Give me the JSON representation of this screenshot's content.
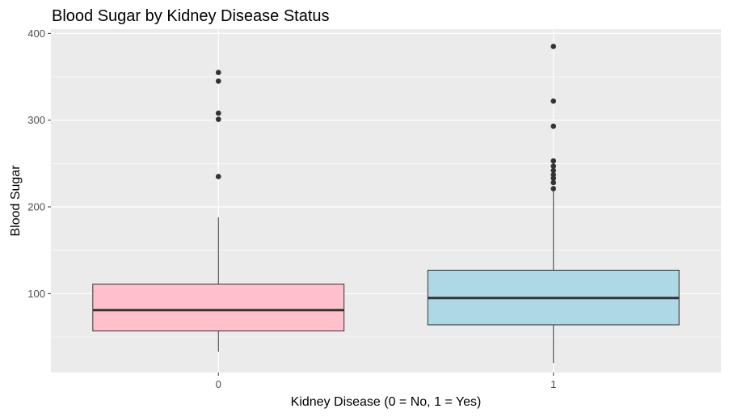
{
  "chart_data": {
    "type": "boxplot",
    "title": "Blood Sugar by Kidney Disease Status",
    "xlabel": "Kidney Disease (0 = No, 1 = Yes)",
    "ylabel": "Blood Sugar",
    "ylim": [
      9,
      405
    ],
    "yticks": [
      100,
      200,
      300,
      400
    ],
    "grid": true,
    "panel_color": "#ebebeb",
    "grid_color": "#ffffff",
    "categories": [
      "0",
      "1"
    ],
    "boxes": [
      {
        "category": "0",
        "fill": "#ffc0cb",
        "q1": 57,
        "median": 81,
        "q3": 111,
        "whisker_low": 33,
        "whisker_high": 188,
        "outliers": [
          355,
          345,
          308,
          301,
          235
        ]
      },
      {
        "category": "1",
        "fill": "#add8e6",
        "q1": 64,
        "median": 95,
        "q3": 127,
        "whisker_low": 20,
        "whisker_high": 219,
        "outliers": [
          385,
          322,
          293,
          253,
          247,
          242,
          237,
          233,
          228,
          221
        ]
      }
    ]
  }
}
